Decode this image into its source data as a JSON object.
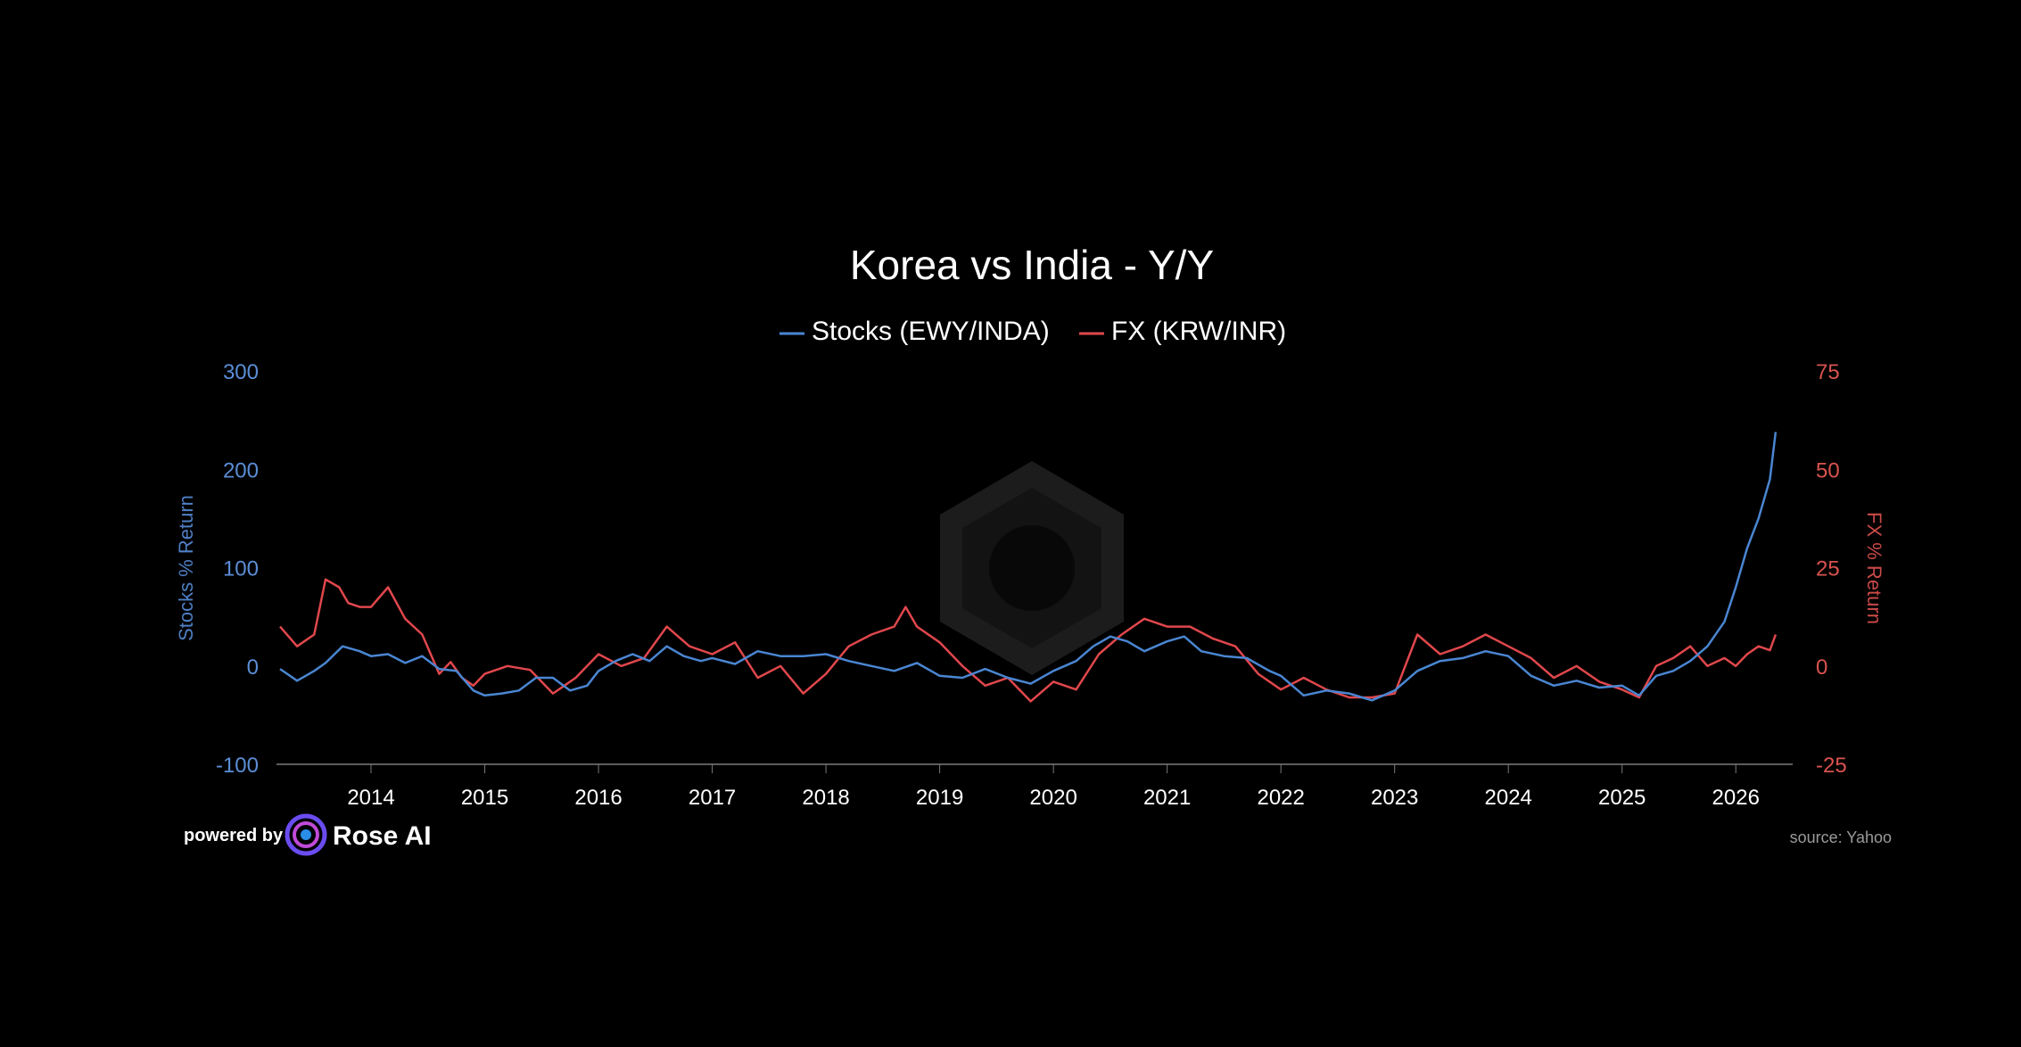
{
  "footer": {
    "powered_label": "powered by",
    "brand_name": "Rose AI",
    "source_label": "source: Yahoo"
  },
  "colors": {
    "background": "#000000",
    "stocks": "#4a86d2",
    "fx": "#e0474c",
    "axis_line": "#7a7a7a"
  },
  "chart_data": {
    "type": "line",
    "title": "Korea vs India - Y/Y",
    "legend_placement": "top-center",
    "grid": false,
    "xlabel": "",
    "x_ticks": [
      "2014",
      "2015",
      "2016",
      "2017",
      "2018",
      "2019",
      "2020",
      "2021",
      "2022",
      "2023",
      "2024",
      "2025",
      "2026"
    ],
    "xlim": [
      2013.2,
      2026.5
    ],
    "y_left": {
      "label": "Stocks % Return",
      "ticks": [
        "300",
        "200",
        "100",
        "0",
        "-100"
      ],
      "range": [
        -100,
        300
      ]
    },
    "y_right": {
      "label": "FX % Return",
      "ticks": [
        "75",
        "50",
        "25",
        "0",
        "-25"
      ],
      "range": [
        -25,
        75
      ]
    },
    "series": [
      {
        "name": "Stocks (EWY/INDA)",
        "axis": "left",
        "color": "#4a86d2",
        "x": [
          2013.2,
          2013.35,
          2013.5,
          2013.6,
          2013.75,
          2013.9,
          2014.0,
          2014.15,
          2014.3,
          2014.45,
          2014.6,
          2014.75,
          2014.9,
          2015.0,
          2015.15,
          2015.3,
          2015.45,
          2015.6,
          2015.75,
          2015.9,
          2016.0,
          2016.15,
          2016.3,
          2016.45,
          2016.6,
          2016.75,
          2016.9,
          2017.0,
          2017.2,
          2017.4,
          2017.6,
          2017.8,
          2018.0,
          2018.2,
          2018.4,
          2018.6,
          2018.8,
          2019.0,
          2019.2,
          2019.4,
          2019.6,
          2019.8,
          2020.0,
          2020.2,
          2020.35,
          2020.5,
          2020.65,
          2020.8,
          2021.0,
          2021.15,
          2021.3,
          2021.5,
          2021.7,
          2021.9,
          2022.0,
          2022.2,
          2022.4,
          2022.6,
          2022.8,
          2023.0,
          2023.2,
          2023.4,
          2023.6,
          2023.8,
          2024.0,
          2024.2,
          2024.4,
          2024.6,
          2024.8,
          2025.0,
          2025.15,
          2025.3,
          2025.45,
          2025.6,
          2025.75,
          2025.9,
          2026.0,
          2026.1,
          2026.2,
          2026.3,
          2026.35
        ],
        "values": [
          -3,
          -15,
          -5,
          3,
          20,
          15,
          10,
          12,
          3,
          10,
          -3,
          -5,
          -25,
          -30,
          -28,
          -25,
          -12,
          -12,
          -25,
          -20,
          -5,
          5,
          12,
          5,
          20,
          10,
          5,
          8,
          2,
          15,
          10,
          10,
          12,
          5,
          0,
          -5,
          3,
          -10,
          -12,
          -3,
          -12,
          -18,
          -5,
          5,
          20,
          30,
          25,
          15,
          25,
          30,
          15,
          10,
          8,
          -5,
          -10,
          -30,
          -25,
          -28,
          -35,
          -25,
          -5,
          5,
          8,
          15,
          10,
          -10,
          -20,
          -15,
          -22,
          -20,
          -30,
          -10,
          -5,
          5,
          20,
          45,
          80,
          120,
          150,
          190,
          238
        ]
      },
      {
        "name": "FX (KRW/INR)",
        "axis": "right",
        "color": "#e0474c",
        "x": [
          2013.2,
          2013.35,
          2013.5,
          2013.6,
          2013.72,
          2013.8,
          2013.9,
          2014.0,
          2014.15,
          2014.3,
          2014.45,
          2014.6,
          2014.7,
          2014.8,
          2014.9,
          2015.0,
          2015.2,
          2015.4,
          2015.6,
          2015.8,
          2016.0,
          2016.2,
          2016.4,
          2016.6,
          2016.8,
          2017.0,
          2017.2,
          2017.4,
          2017.6,
          2017.8,
          2018.0,
          2018.2,
          2018.4,
          2018.6,
          2018.7,
          2018.8,
          2019.0,
          2019.2,
          2019.4,
          2019.6,
          2019.8,
          2020.0,
          2020.2,
          2020.4,
          2020.6,
          2020.8,
          2021.0,
          2021.2,
          2021.4,
          2021.6,
          2021.8,
          2022.0,
          2022.2,
          2022.4,
          2022.6,
          2022.8,
          2023.0,
          2023.2,
          2023.4,
          2023.6,
          2023.8,
          2024.0,
          2024.2,
          2024.4,
          2024.6,
          2024.8,
          2025.0,
          2025.15,
          2025.3,
          2025.45,
          2025.6,
          2025.75,
          2025.9,
          2026.0,
          2026.1,
          2026.2,
          2026.3,
          2026.35
        ],
        "values": [
          10,
          5,
          8,
          22,
          20,
          16,
          15,
          15,
          20,
          12,
          8,
          -2,
          1,
          -3,
          -5,
          -2,
          0,
          -1,
          -7,
          -3,
          3,
          0,
          2,
          10,
          5,
          3,
          6,
          -3,
          0,
          -7,
          -2,
          5,
          8,
          10,
          15,
          10,
          6,
          0,
          -5,
          -3,
          -9,
          -4,
          -6,
          3,
          8,
          12,
          10,
          10,
          7,
          5,
          -2,
          -6,
          -3,
          -6,
          -8,
          -8,
          -7,
          8,
          3,
          5,
          8,
          5,
          2,
          -3,
          0,
          -4,
          -6,
          -8,
          0,
          2,
          5,
          0,
          2,
          0,
          3,
          5,
          4,
          8
        ]
      }
    ]
  }
}
